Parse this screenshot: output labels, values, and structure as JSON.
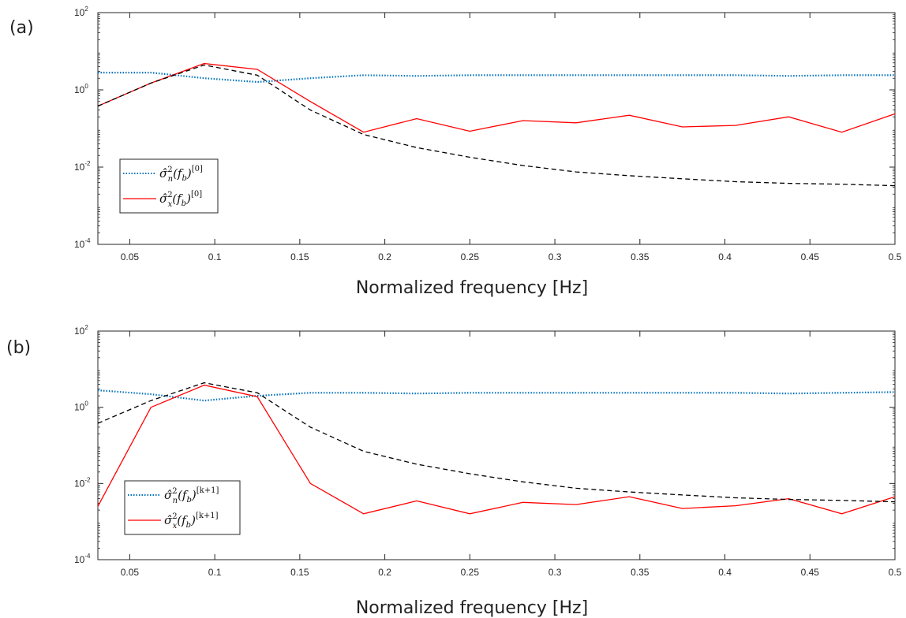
{
  "chart_data": [
    {
      "panel_label": "(a)",
      "type": "line",
      "xlabel": "Normalized frequency [Hz]",
      "ylabel": "",
      "xlim": [
        0.03125,
        0.5
      ],
      "ylim": [
        0.0001,
        100
      ],
      "yscale": "log",
      "grid": false,
      "legend_placement": "bottom-left",
      "x_ticks": [
        "0.05",
        "0.1",
        "0.15",
        "0.2",
        "0.25",
        "0.3",
        "0.35",
        "0.4",
        "0.45",
        "0.5"
      ],
      "y_ticks": [
        {
          "base": "10",
          "exp": "-4",
          "value": 0.0001
        },
        {
          "base": "10",
          "exp": "-2",
          "value": 0.01
        },
        {
          "base": "10",
          "exp": "0",
          "value": 1
        },
        {
          "base": "10",
          "exp": "2",
          "value": 100
        }
      ],
      "series": [
        {
          "name": "σ̂²ₙ(f_b)^[0]",
          "legend": {
            "sym": "σ̂",
            "sup2": "2",
            "sub": "n",
            "arg": "(f",
            "argsub": "b",
            "close": ")",
            "iter": "[0]"
          },
          "style": "dotted",
          "color": "#0072BD",
          "x": [
            0.03125,
            0.0625,
            0.09375,
            0.125,
            0.15625,
            0.1875,
            0.21875,
            0.25,
            0.28125,
            0.3125,
            0.34375,
            0.375,
            0.40625,
            0.4375,
            0.46875,
            0.5
          ],
          "y": [
            2.8,
            2.8,
            2.0,
            1.6,
            2.0,
            2.4,
            2.3,
            2.4,
            2.4,
            2.4,
            2.4,
            2.4,
            2.4,
            2.3,
            2.4,
            2.4
          ]
        },
        {
          "name": "σ̂²ₓ(f_b)^[0]",
          "legend": {
            "sym": "σ̂",
            "sup2": "2",
            "sub": "x",
            "arg": "(f",
            "argsub": "b",
            "close": ")",
            "iter": "[0]"
          },
          "style": "solid",
          "color": "#FF0000",
          "x": [
            0.03125,
            0.0625,
            0.09375,
            0.125,
            0.15625,
            0.1875,
            0.21875,
            0.25,
            0.28125,
            0.3125,
            0.34375,
            0.375,
            0.40625,
            0.4375,
            0.46875,
            0.5
          ],
          "y": [
            0.38,
            1.5,
            4.8,
            3.4,
            0.5,
            0.08,
            0.18,
            0.085,
            0.16,
            0.14,
            0.22,
            0.11,
            0.12,
            0.2,
            0.08,
            0.24
          ]
        },
        {
          "style": "dashed",
          "color": "#000000",
          "x": [
            0.03125,
            0.0625,
            0.09375,
            0.125,
            0.15625,
            0.1875,
            0.21875,
            0.25,
            0.28125,
            0.3125,
            0.34375,
            0.375,
            0.40625,
            0.4375,
            0.46875,
            0.5
          ],
          "y": [
            0.38,
            1.5,
            4.4,
            2.4,
            0.3,
            0.07,
            0.032,
            0.018,
            0.011,
            0.0075,
            0.006,
            0.005,
            0.0042,
            0.0038,
            0.0036,
            0.0033
          ]
        }
      ]
    },
    {
      "panel_label": "(b)",
      "type": "line",
      "xlabel": "Normalized frequency [Hz]",
      "ylabel": "",
      "xlim": [
        0.03125,
        0.5
      ],
      "ylim": [
        0.0001,
        100
      ],
      "yscale": "log",
      "grid": false,
      "legend_placement": "bottom-left",
      "x_ticks": [
        "0.05",
        "0.1",
        "0.15",
        "0.2",
        "0.25",
        "0.3",
        "0.35",
        "0.4",
        "0.45",
        "0.5"
      ],
      "y_ticks": [
        {
          "base": "10",
          "exp": "-4",
          "value": 0.0001
        },
        {
          "base": "10",
          "exp": "-2",
          "value": 0.01
        },
        {
          "base": "10",
          "exp": "0",
          "value": 1
        },
        {
          "base": "10",
          "exp": "2",
          "value": 100
        }
      ],
      "series": [
        {
          "name": "σ̂²ₙ(f_b)^[k+1]",
          "legend": {
            "sym": "σ̂",
            "sup2": "2",
            "sub": "n",
            "arg": "(f",
            "argsub": "b",
            "close": ")",
            "iter": "[k+1]"
          },
          "style": "dotted",
          "color": "#0072BD",
          "x": [
            0.03125,
            0.0625,
            0.09375,
            0.125,
            0.15625,
            0.1875,
            0.21875,
            0.25,
            0.28125,
            0.3125,
            0.34375,
            0.375,
            0.40625,
            0.4375,
            0.46875,
            0.5
          ],
          "y": [
            2.8,
            2.2,
            1.5,
            2.0,
            2.4,
            2.4,
            2.3,
            2.4,
            2.4,
            2.4,
            2.4,
            2.4,
            2.4,
            2.3,
            2.4,
            2.5
          ]
        },
        {
          "name": "σ̂²ₓ(f_b)^[k+1]",
          "legend": {
            "sym": "σ̂",
            "sup2": "2",
            "sub": "x",
            "arg": "(f",
            "argsub": "b",
            "close": ")",
            "iter": "[k+1]"
          },
          "style": "solid",
          "color": "#FF0000",
          "x": [
            0.03125,
            0.0625,
            0.09375,
            0.125,
            0.15625,
            0.1875,
            0.21875,
            0.25,
            0.28125,
            0.3125,
            0.34375,
            0.375,
            0.40625,
            0.4375,
            0.46875,
            0.5
          ],
          "y": [
            0.0025,
            1.0,
            3.8,
            1.9,
            0.01,
            0.0016,
            0.0035,
            0.0016,
            0.0032,
            0.0028,
            0.0045,
            0.0022,
            0.0026,
            0.004,
            0.0016,
            0.0045
          ]
        },
        {
          "style": "dashed",
          "color": "#000000",
          "x": [
            0.03125,
            0.0625,
            0.09375,
            0.125,
            0.15625,
            0.1875,
            0.21875,
            0.25,
            0.28125,
            0.3125,
            0.34375,
            0.375,
            0.40625,
            0.4375,
            0.46875,
            0.5
          ],
          "y": [
            0.38,
            1.5,
            4.4,
            2.4,
            0.3,
            0.07,
            0.032,
            0.018,
            0.011,
            0.0075,
            0.006,
            0.005,
            0.0042,
            0.0038,
            0.0036,
            0.0033
          ]
        }
      ]
    }
  ]
}
